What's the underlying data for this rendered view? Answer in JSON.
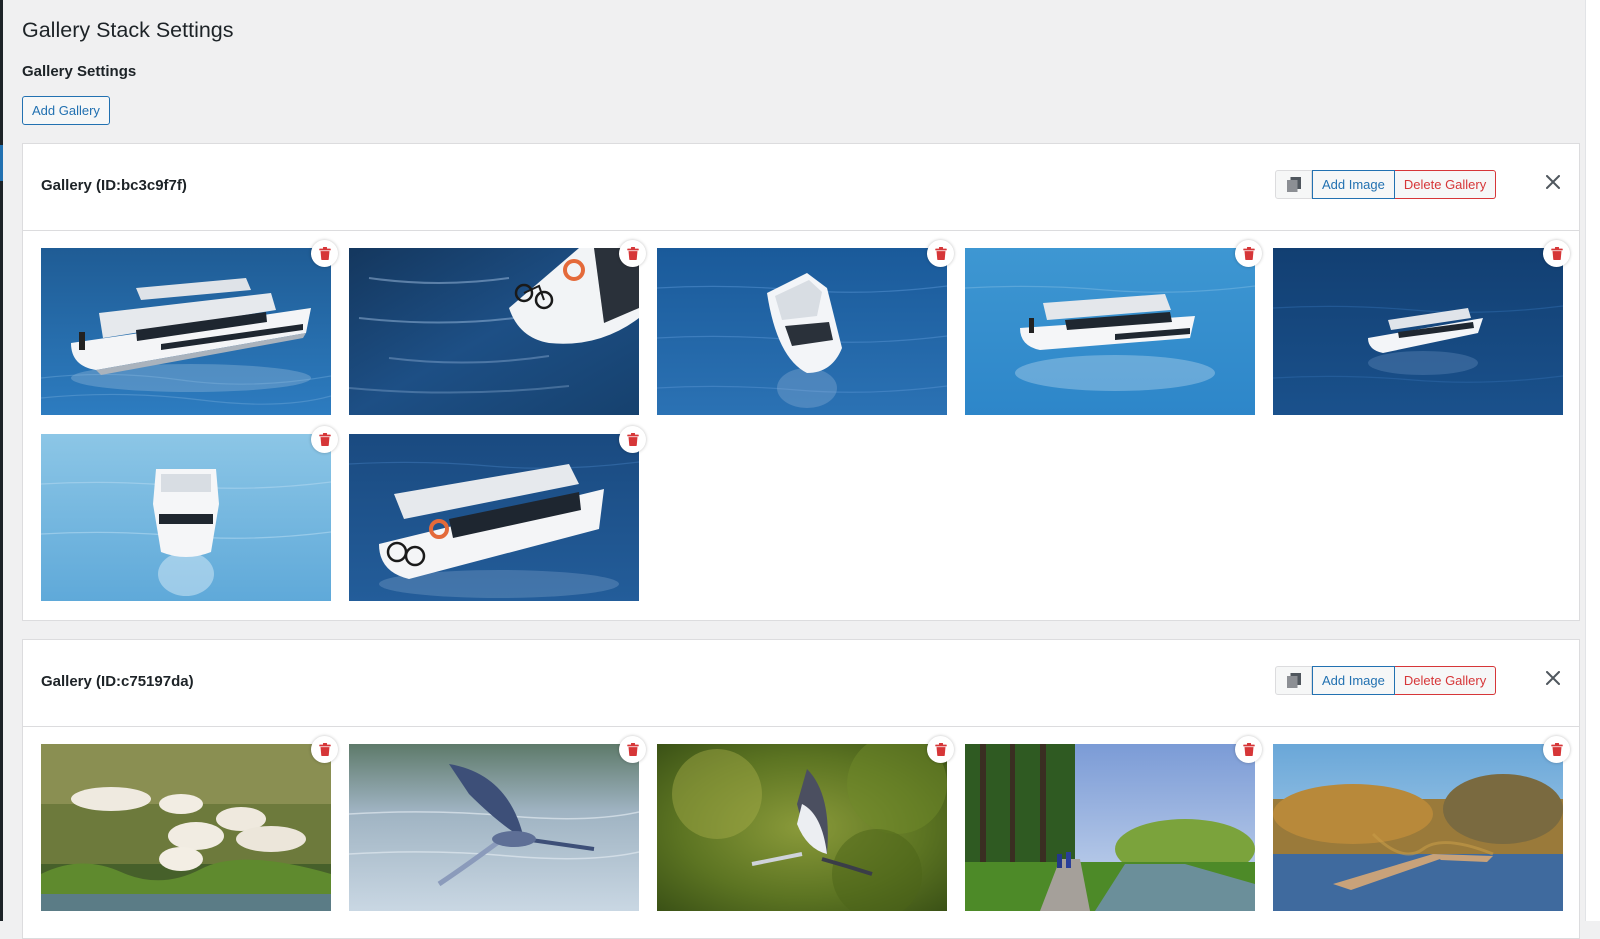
{
  "page": {
    "title": "Gallery Stack Settings",
    "section_title": "Gallery Settings",
    "add_gallery_label": "Add Gallery"
  },
  "colors": {
    "primary": "#2271b1",
    "danger": "#d63638",
    "background": "#f0f0f1"
  },
  "galleries": [
    {
      "title": "Gallery (ID:bc3c9f7f)",
      "add_image_label": "Add Image",
      "delete_gallery_label": "Delete Gallery",
      "images": [
        {
          "subject": "boat-side-view"
        },
        {
          "subject": "boat-bow-closeup"
        },
        {
          "subject": "boat-top-down"
        },
        {
          "subject": "boat-side-view-light"
        },
        {
          "subject": "boat-small-dark-water"
        },
        {
          "subject": "boat-front-view"
        },
        {
          "subject": "boat-rear-bicycles"
        }
      ]
    },
    {
      "title": "Gallery (ID:c75197da)",
      "add_image_label": "Add Image",
      "delete_gallery_label": "Delete Gallery",
      "images": [
        {
          "subject": "cattle-grazing"
        },
        {
          "subject": "heron-over-water"
        },
        {
          "subject": "heron-over-trees"
        },
        {
          "subject": "canal-path-cyclists"
        },
        {
          "subject": "wetland-boardwalk"
        }
      ]
    }
  ]
}
